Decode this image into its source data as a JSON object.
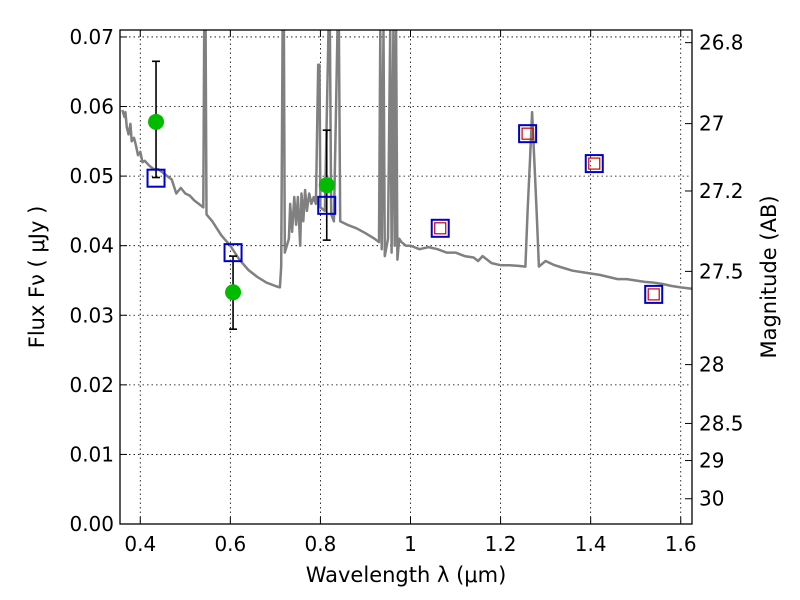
{
  "chart_data": {
    "type": "scatter",
    "xlabel": "Wavelength  λ (μm)",
    "ylabel": "Flux  Fν  ( μJy )",
    "y2label": "Magnitude (AB)",
    "xlim": [
      0.355,
      1.625
    ],
    "ylim": [
      0.0,
      0.071
    ],
    "grid": true,
    "x_ticks": [
      0.4,
      0.6,
      0.8,
      1.0,
      1.2,
      1.4,
      1.6
    ],
    "x_tick_labels": [
      "0.4",
      "0.6",
      "0.8",
      "1",
      "1.2",
      "1.4",
      "1.6"
    ],
    "y_ticks": [
      0.0,
      0.01,
      0.02,
      0.03,
      0.04,
      0.05,
      0.06,
      0.07
    ],
    "y_tick_labels": [
      "0.00",
      "0.01",
      "0.02",
      "0.03",
      "0.04",
      "0.05",
      "0.06",
      "0.07"
    ],
    "y2_ticks": [
      26.8,
      27.0,
      27.2,
      27.5,
      28.0,
      28.5,
      29.0,
      30.0
    ],
    "y2_tick_labels": [
      "26.8",
      "27",
      "27.2",
      "27.5",
      "28",
      "28.5",
      "29",
      "30"
    ],
    "colors": {
      "sed": "#808080",
      "observed": "#00bb00",
      "errorbar": "#000000",
      "model_photometry": "#0000cc",
      "upper_points": "#cc0000"
    },
    "series": [
      {
        "type": "line",
        "points": [
          [
            0.36,
            0.0595
          ],
          [
            0.365,
            0.0585
          ],
          [
            0.367,
            0.0592
          ],
          [
            0.37,
            0.057
          ],
          [
            0.374,
            0.056
          ],
          [
            0.378,
            0.0575
          ],
          [
            0.381,
            0.055
          ],
          [
            0.386,
            0.0555
          ],
          [
            0.39,
            0.0545
          ],
          [
            0.395,
            0.053
          ],
          [
            0.4,
            0.0535
          ],
          [
            0.405,
            0.052
          ],
          [
            0.41,
            0.0522
          ],
          [
            0.42,
            0.0515
          ],
          [
            0.43,
            0.051
          ],
          [
            0.44,
            0.051
          ],
          [
            0.45,
            0.0505
          ],
          [
            0.46,
            0.05
          ],
          [
            0.47,
            0.0495
          ],
          [
            0.475,
            0.0485
          ],
          [
            0.48,
            0.0475
          ],
          [
            0.49,
            0.0483
          ],
          [
            0.5,
            0.0475
          ],
          [
            0.51,
            0.0472
          ],
          [
            0.52,
            0.0465
          ],
          [
            0.53,
            0.046
          ],
          [
            0.54,
            0.0455
          ],
          [
            0.542,
            0.071
          ],
          [
            0.545,
            0.071
          ],
          [
            0.547,
            0.0445
          ],
          [
            0.56,
            0.0435
          ],
          [
            0.58,
            0.0415
          ],
          [
            0.6,
            0.04
          ],
          [
            0.62,
            0.038
          ],
          [
            0.64,
            0.0365
          ],
          [
            0.66,
            0.0355
          ],
          [
            0.68,
            0.0347
          ],
          [
            0.7,
            0.0342
          ],
          [
            0.71,
            0.034
          ],
          [
            0.713,
            0.037
          ],
          [
            0.716,
            0.071
          ],
          [
            0.719,
            0.071
          ],
          [
            0.721,
            0.039
          ],
          [
            0.73,
            0.041
          ],
          [
            0.733,
            0.046
          ],
          [
            0.737,
            0.042
          ],
          [
            0.742,
            0.047
          ],
          [
            0.746,
            0.043
          ],
          [
            0.75,
            0.047
          ],
          [
            0.755,
            0.04
          ],
          [
            0.758,
            0.0475
          ],
          [
            0.762,
            0.0435
          ],
          [
            0.766,
            0.048
          ],
          [
            0.77,
            0.045
          ],
          [
            0.775,
            0.0475
          ],
          [
            0.78,
            0.046
          ],
          [
            0.785,
            0.047
          ],
          [
            0.79,
            0.046
          ],
          [
            0.795,
            0.066
          ],
          [
            0.798,
            0.066
          ],
          [
            0.8,
            0.0455
          ],
          [
            0.81,
            0.045
          ],
          [
            0.818,
            0.071
          ],
          [
            0.821,
            0.071
          ],
          [
            0.824,
            0.0445
          ],
          [
            0.83,
            0.0435
          ],
          [
            0.838,
            0.071
          ],
          [
            0.841,
            0.071
          ],
          [
            0.844,
            0.0435
          ],
          [
            0.86,
            0.043
          ],
          [
            0.88,
            0.0425
          ],
          [
            0.9,
            0.0418
          ],
          [
            0.92,
            0.041
          ],
          [
            0.93,
            0.0405
          ],
          [
            0.933,
            0.071
          ],
          [
            0.936,
            0.0395
          ],
          [
            0.94,
            0.071
          ],
          [
            0.943,
            0.0385
          ],
          [
            0.95,
            0.041
          ],
          [
            0.955,
            0.071
          ],
          [
            0.958,
            0.039
          ],
          [
            0.962,
            0.071
          ],
          [
            0.965,
            0.04
          ],
          [
            0.968,
            0.071
          ],
          [
            0.971,
            0.038
          ],
          [
            0.975,
            0.041
          ],
          [
            0.98,
            0.0405
          ],
          [
            0.99,
            0.04
          ],
          [
            1.0,
            0.04
          ],
          [
            1.02,
            0.0395
          ],
          [
            1.04,
            0.0398
          ],
          [
            1.06,
            0.0395
          ],
          [
            1.08,
            0.039
          ],
          [
            1.1,
            0.039
          ],
          [
            1.12,
            0.0385
          ],
          [
            1.14,
            0.0383
          ],
          [
            1.15,
            0.0378
          ],
          [
            1.16,
            0.0385
          ],
          [
            1.18,
            0.0375
          ],
          [
            1.2,
            0.0372
          ],
          [
            1.22,
            0.0372
          ],
          [
            1.24,
            0.0371
          ],
          [
            1.255,
            0.037
          ],
          [
            1.26,
            0.045
          ],
          [
            1.265,
            0.052
          ],
          [
            1.27,
            0.0592
          ],
          [
            1.275,
            0.052
          ],
          [
            1.28,
            0.045
          ],
          [
            1.285,
            0.037
          ],
          [
            1.3,
            0.0378
          ],
          [
            1.32,
            0.0372
          ],
          [
            1.34,
            0.0368
          ],
          [
            1.36,
            0.0364
          ],
          [
            1.38,
            0.0362
          ],
          [
            1.4,
            0.036
          ],
          [
            1.42,
            0.0358
          ],
          [
            1.44,
            0.0355
          ],
          [
            1.46,
            0.0352
          ],
          [
            1.48,
            0.0352
          ],
          [
            1.5,
            0.035
          ],
          [
            1.52,
            0.0348
          ],
          [
            1.54,
            0.0347
          ],
          [
            1.56,
            0.0345
          ],
          [
            1.58,
            0.0342
          ],
          [
            1.6,
            0.034
          ],
          [
            1.625,
            0.0338
          ]
        ]
      },
      {
        "type": "errorbar",
        "points": [
          {
            "x": 0.435,
            "y": 0.0578,
            "ylow": 0.0498,
            "yhigh": 0.0665
          },
          {
            "x": 0.606,
            "y": 0.0333,
            "ylow": 0.028,
            "yhigh": 0.0385
          },
          {
            "x": 0.814,
            "y": 0.0487,
            "ylow": 0.0408,
            "yhigh": 0.0566
          }
        ]
      },
      {
        "type": "square-open",
        "points": [
          [
            0.435,
            0.0497
          ],
          [
            0.606,
            0.039
          ],
          [
            0.814,
            0.0458
          ],
          [
            1.066,
            0.0425
          ],
          [
            1.26,
            0.0561
          ],
          [
            1.408,
            0.0518
          ],
          [
            1.54,
            0.033
          ]
        ]
      },
      {
        "type": "square-open-small",
        "points": [
          [
            1.066,
            0.0425
          ],
          [
            1.26,
            0.0561
          ],
          [
            1.408,
            0.0518
          ],
          [
            1.54,
            0.033
          ]
        ]
      }
    ]
  }
}
